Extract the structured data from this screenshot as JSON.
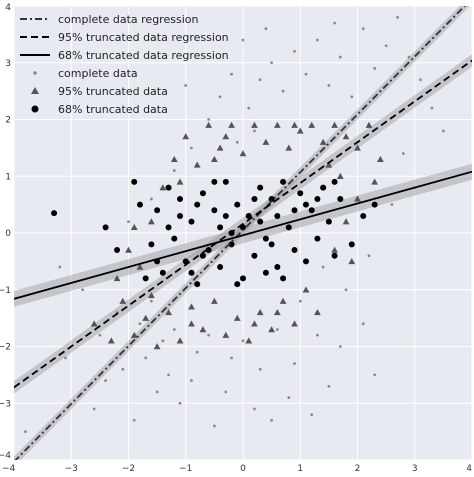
{
  "chart_data": {
    "type": "scatter",
    "title": "",
    "xlabel": "",
    "ylabel": "",
    "xlim": [
      -4,
      4
    ],
    "ylim": [
      -4,
      4
    ],
    "grid": true,
    "background_color": "#e8eaf2",
    "grid_color": "#ffffff",
    "legend_location": "top-left",
    "x_ticks": [
      -4,
      -3,
      -2,
      -1,
      0,
      1,
      2,
      3,
      4
    ],
    "y_ticks": [
      -4,
      -3,
      -2,
      -1,
      0,
      1,
      2,
      3,
      4
    ],
    "x_tick_labels": [
      "−4",
      "−3",
      "−2",
      "−1",
      "0",
      "1",
      "2",
      "3",
      "4"
    ],
    "y_tick_labels": [
      "−4",
      "−3",
      "−2",
      "−1",
      "0",
      "1",
      "2",
      "3",
      "4"
    ],
    "lines": [
      {
        "name": "complete data regression",
        "style": "dashdot",
        "color": "#333333",
        "slope": 1.02,
        "intercept": 0.05,
        "band_half_width": 0.09
      },
      {
        "name": "95% truncated data regression",
        "style": "dashed",
        "color": "#000000",
        "slope": 0.72,
        "intercept": 0.16,
        "band_half_width": 0.11
      },
      {
        "name": "68% truncated data regression",
        "style": "solid",
        "color": "#000000",
        "slope": 0.28,
        "intercept": -0.04,
        "band_half_width": 0.14
      }
    ],
    "series": [
      {
        "name": "complete data",
        "marker": "small-dot",
        "color": "#8a8a8a",
        "points": [
          [
            -3.8,
            -3.5
          ],
          [
            -3.1,
            -2.2
          ],
          [
            -2.6,
            -3.1
          ],
          [
            -2.4,
            -2.6
          ],
          [
            -2.1,
            -2.4
          ],
          [
            -1.9,
            -3.3
          ],
          [
            -1.7,
            -2.2
          ],
          [
            -1.5,
            -2.8
          ],
          [
            -1.3,
            -2.5
          ],
          [
            -1.1,
            -3.0
          ],
          [
            -0.9,
            -2.6
          ],
          [
            -0.5,
            -3.4
          ],
          [
            -0.3,
            -2.8
          ],
          [
            0.2,
            -3.1
          ],
          [
            0.5,
            -3.3
          ],
          [
            0.8,
            -2.9
          ],
          [
            1.2,
            -3.2
          ],
          [
            1.5,
            -2.7
          ],
          [
            -2.5,
            -1.8
          ],
          [
            -2.2,
            -1.4
          ],
          [
            -1.8,
            -1.6
          ],
          [
            -1.6,
            -1.2
          ],
          [
            -1.4,
            -1.9
          ],
          [
            -1.2,
            -1.7
          ],
          [
            -0.8,
            -2.1
          ],
          [
            -0.6,
            -1.8
          ],
          [
            -0.2,
            -2.2
          ],
          [
            0.0,
            -1.9
          ],
          [
            0.3,
            -2.4
          ],
          [
            0.6,
            -1.7
          ],
          [
            0.9,
            -2.3
          ],
          [
            1.3,
            -1.8
          ],
          [
            1.7,
            -2.0
          ],
          [
            2.1,
            -1.6
          ],
          [
            2.3,
            -2.5
          ],
          [
            -2.0,
            0.2
          ],
          [
            -1.6,
            0.6
          ],
          [
            -1.2,
            1.1
          ],
          [
            -0.9,
            1.5
          ],
          [
            -0.6,
            2.0
          ],
          [
            -0.4,
            2.4
          ],
          [
            -0.2,
            2.8
          ],
          [
            0.1,
            2.2
          ],
          [
            0.3,
            2.7
          ],
          [
            0.5,
            3.0
          ],
          [
            0.7,
            2.5
          ],
          [
            0.9,
            3.2
          ],
          [
            1.1,
            2.8
          ],
          [
            1.3,
            3.4
          ],
          [
            1.5,
            2.6
          ],
          [
            1.7,
            3.1
          ],
          [
            1.9,
            2.4
          ],
          [
            2.1,
            3.6
          ],
          [
            2.3,
            2.9
          ],
          [
            2.5,
            3.3
          ],
          [
            2.7,
            3.8
          ],
          [
            2.9,
            3.1
          ],
          [
            3.1,
            2.7
          ],
          [
            3.3,
            2.2
          ],
          [
            3.5,
            1.8
          ],
          [
            3.0,
            0.8
          ],
          [
            2.8,
            1.4
          ],
          [
            2.6,
            0.5
          ],
          [
            1.0,
            -1.2
          ],
          [
            1.4,
            -0.6
          ],
          [
            1.8,
            -1.0
          ],
          [
            2.2,
            -0.4
          ],
          [
            -2.8,
            -1.0
          ],
          [
            -3.2,
            -0.6
          ],
          [
            -1.0,
            2.6
          ],
          [
            0.0,
            3.4
          ],
          [
            0.4,
            3.6
          ],
          [
            1.6,
            3.7
          ],
          [
            0.2,
            1.8
          ],
          [
            -0.1,
            1.6
          ]
        ]
      },
      {
        "name": "95% truncated data",
        "marker": "triangle",
        "color": "#555555",
        "points": [
          [
            -2.6,
            -1.6
          ],
          [
            -2.3,
            -1.9
          ],
          [
            -2.1,
            -1.2
          ],
          [
            -1.9,
            -1.8
          ],
          [
            -1.7,
            -1.5
          ],
          [
            -1.5,
            -2.0
          ],
          [
            -1.3,
            -1.4
          ],
          [
            -1.1,
            -1.9
          ],
          [
            -0.9,
            -1.3
          ],
          [
            -0.7,
            -1.7
          ],
          [
            -0.5,
            -1.2
          ],
          [
            -0.3,
            -1.8
          ],
          [
            -0.1,
            -1.5
          ],
          [
            0.1,
            -1.9
          ],
          [
            0.3,
            -1.4
          ],
          [
            0.5,
            -1.7
          ],
          [
            0.7,
            -1.2
          ],
          [
            0.9,
            -1.6
          ],
          [
            1.1,
            -1.0
          ],
          [
            1.3,
            -1.4
          ],
          [
            -1.8,
            -0.6
          ],
          [
            -1.6,
            0.2
          ],
          [
            -1.4,
            0.8
          ],
          [
            -1.2,
            1.3
          ],
          [
            -1.0,
            1.7
          ],
          [
            -0.8,
            1.2
          ],
          [
            -0.6,
            1.9
          ],
          [
            -0.4,
            1.5
          ],
          [
            -0.2,
            1.9
          ],
          [
            0.0,
            1.4
          ],
          [
            0.2,
            1.9
          ],
          [
            0.4,
            1.6
          ],
          [
            0.6,
            1.9
          ],
          [
            0.8,
            1.5
          ],
          [
            1.0,
            1.8
          ],
          [
            1.2,
            1.9
          ],
          [
            1.4,
            1.6
          ],
          [
            1.6,
            1.9
          ],
          [
            1.8,
            1.7
          ],
          [
            2.0,
            1.5
          ],
          [
            2.2,
            1.9
          ],
          [
            2.4,
            1.3
          ],
          [
            2.0,
            0.6
          ],
          [
            1.8,
            0.2
          ],
          [
            1.6,
            -0.3
          ],
          [
            -2.2,
            -0.8
          ],
          [
            -2.0,
            -0.3
          ],
          [
            -1.9,
            0.1
          ],
          [
            -0.9,
            -1.6
          ],
          [
            0.6,
            -1.4
          ],
          [
            1.5,
            1.2
          ],
          [
            1.7,
            1.0
          ],
          [
            -1.1,
            0.9
          ],
          [
            -0.3,
            1.7
          ],
          [
            0.9,
            1.9
          ],
          [
            2.3,
            0.9
          ],
          [
            1.9,
            -0.5
          ],
          [
            -1.6,
            -1.1
          ],
          [
            0.2,
            -1.6
          ],
          [
            -0.5,
            1.3
          ]
        ]
      },
      {
        "name": "68% truncated data",
        "marker": "dot",
        "color": "#000000",
        "points": [
          [
            -3.3,
            0.35
          ],
          [
            -1.9,
            0.9
          ],
          [
            -2.2,
            -0.3
          ],
          [
            -1.8,
            0.5
          ],
          [
            -1.6,
            -0.2
          ],
          [
            -1.5,
            0.4
          ],
          [
            -1.4,
            -0.7
          ],
          [
            -1.3,
            0.8
          ],
          [
            -1.2,
            -0.1
          ],
          [
            -1.1,
            0.6
          ],
          [
            -1.0,
            -0.5
          ],
          [
            -0.9,
            0.2
          ],
          [
            -0.8,
            -0.9
          ],
          [
            -0.7,
            0.7
          ],
          [
            -0.6,
            -0.3
          ],
          [
            -0.5,
            0.4
          ],
          [
            -0.4,
            -0.6
          ],
          [
            -0.3,
            0.9
          ],
          [
            -0.2,
            -0.2
          ],
          [
            -0.1,
            0.5
          ],
          [
            0.0,
            -0.8
          ],
          [
            0.1,
            0.3
          ],
          [
            0.2,
            -0.4
          ],
          [
            0.3,
            0.8
          ],
          [
            0.4,
            -0.1
          ],
          [
            0.5,
            0.6
          ],
          [
            0.6,
            -0.6
          ],
          [
            0.7,
            0.9
          ],
          [
            0.8,
            0.1
          ],
          [
            0.9,
            -0.3
          ],
          [
            1.0,
            0.7
          ],
          [
            1.1,
            -0.5
          ],
          [
            1.2,
            0.4
          ],
          [
            1.3,
            -0.1
          ],
          [
            1.4,
            0.8
          ],
          [
            1.5,
            0.2
          ],
          [
            1.6,
            -0.4
          ],
          [
            1.7,
            0.6
          ],
          [
            1.9,
            -0.2
          ],
          [
            2.1,
            0.3
          ],
          [
            -1.7,
            -0.8
          ],
          [
            -1.3,
            0.1
          ],
          [
            -0.9,
            -0.7
          ],
          [
            -0.5,
            0.9
          ],
          [
            -0.1,
            -0.9
          ],
          [
            0.3,
            0.2
          ],
          [
            0.7,
            -0.8
          ],
          [
            1.1,
            0.5
          ],
          [
            -0.7,
            -0.4
          ],
          [
            0.0,
            0.1
          ],
          [
            -0.3,
            0.3
          ],
          [
            0.5,
            -0.2
          ],
          [
            0.9,
            0.4
          ],
          [
            -1.1,
            0.3
          ],
          [
            1.3,
            0.6
          ],
          [
            2.3,
            0.5
          ],
          [
            -2.4,
            0.1
          ],
          [
            -0.2,
            0.0
          ],
          [
            0.2,
            0.6
          ],
          [
            0.6,
            0.3
          ],
          [
            -0.8,
            0.5
          ],
          [
            1.6,
            0.9
          ],
          [
            -1.5,
            -0.5
          ],
          [
            0.4,
            -0.7
          ],
          [
            -0.4,
            0.1
          ]
        ]
      }
    ]
  }
}
